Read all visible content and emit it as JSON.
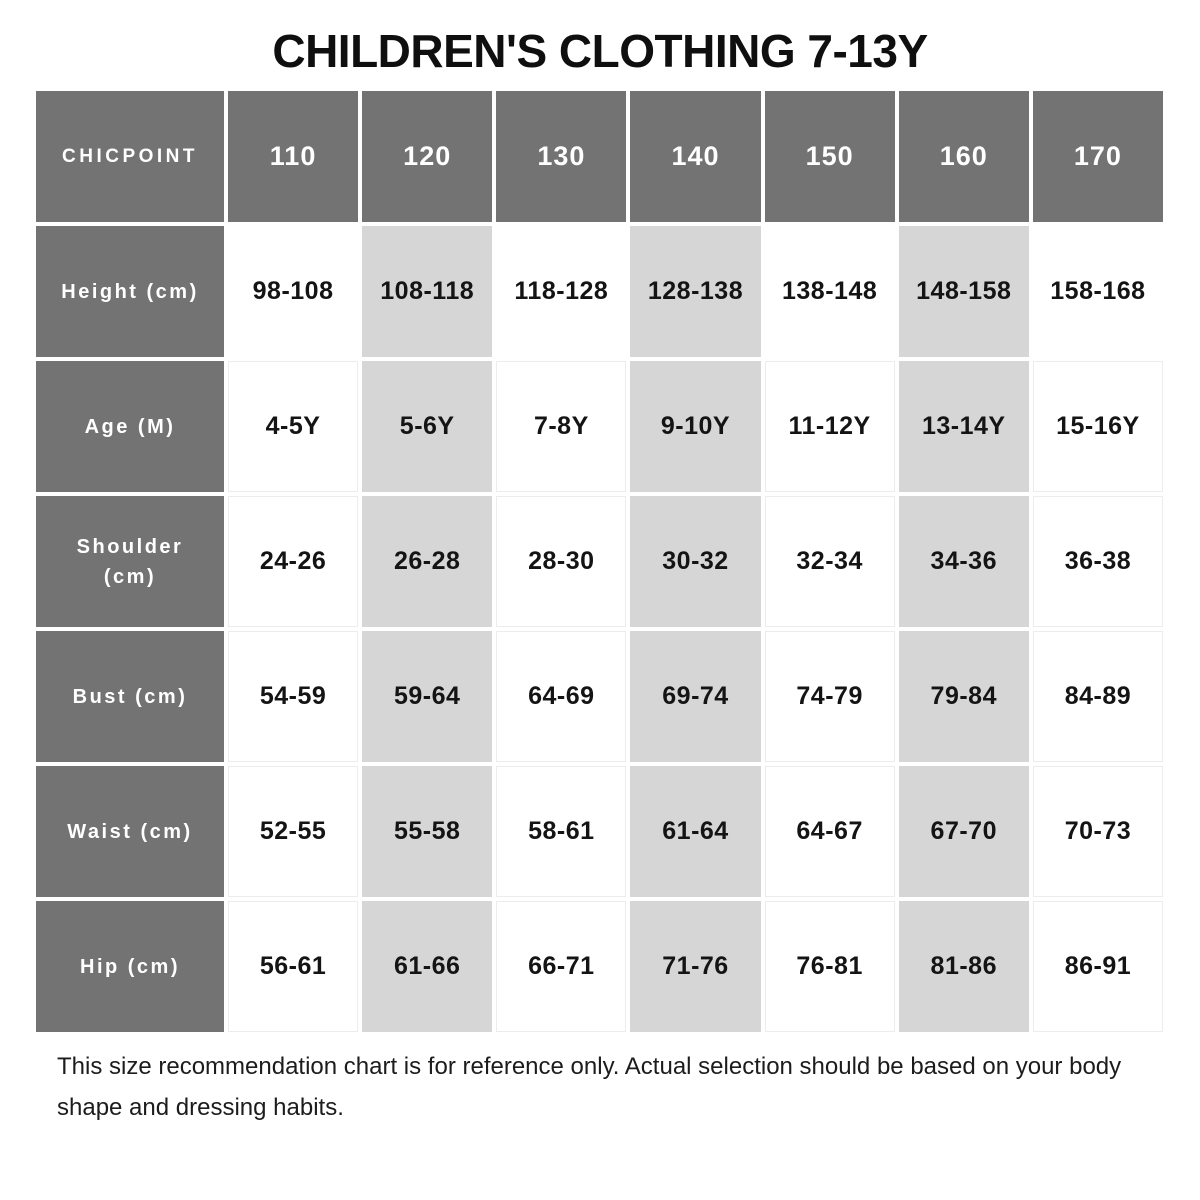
{
  "title": "CHILDREN'S CLOTHING 7-13Y",
  "colors": {
    "header_background": "#737373",
    "header_text": "#ffffff",
    "shaded_column_background": "#d6d6d6",
    "cell_text": "#141414",
    "page_background": "#ffffff"
  },
  "table": {
    "brand": "CHICPOINT",
    "sizes": [
      "110",
      "120",
      "130",
      "140",
      "150",
      "160",
      "170"
    ],
    "rows": [
      {
        "label": "Height (cm)",
        "values": [
          "98-108",
          "108-118",
          "118-128",
          "128-138",
          "138-148",
          "148-158",
          "158-168"
        ]
      },
      {
        "label": "Age (M)",
        "values": [
          "4-5Y",
          "5-6Y",
          "7-8Y",
          "9-10Y",
          "11-12Y",
          "13-14Y",
          "15-16Y"
        ]
      },
      {
        "label": "Shoulder (cm)",
        "values": [
          "24-26",
          "26-28",
          "28-30",
          "30-32",
          "32-34",
          "34-36",
          "36-38"
        ]
      },
      {
        "label": "Bust (cm)",
        "values": [
          "54-59",
          "59-64",
          "64-69",
          "69-74",
          "74-79",
          "79-84",
          "84-89"
        ]
      },
      {
        "label": "Waist (cm)",
        "values": [
          "52-55",
          "55-58",
          "58-61",
          "61-64",
          "64-67",
          "67-70",
          "70-73"
        ]
      },
      {
        "label": "Hip (cm)",
        "values": [
          "56-61",
          "61-66",
          "66-71",
          "71-76",
          "76-81",
          "81-86",
          "86-91"
        ]
      }
    ]
  },
  "footer": "This size recommendation chart is for reference only. Actual selection should be based on your body shape and dressing habits."
}
